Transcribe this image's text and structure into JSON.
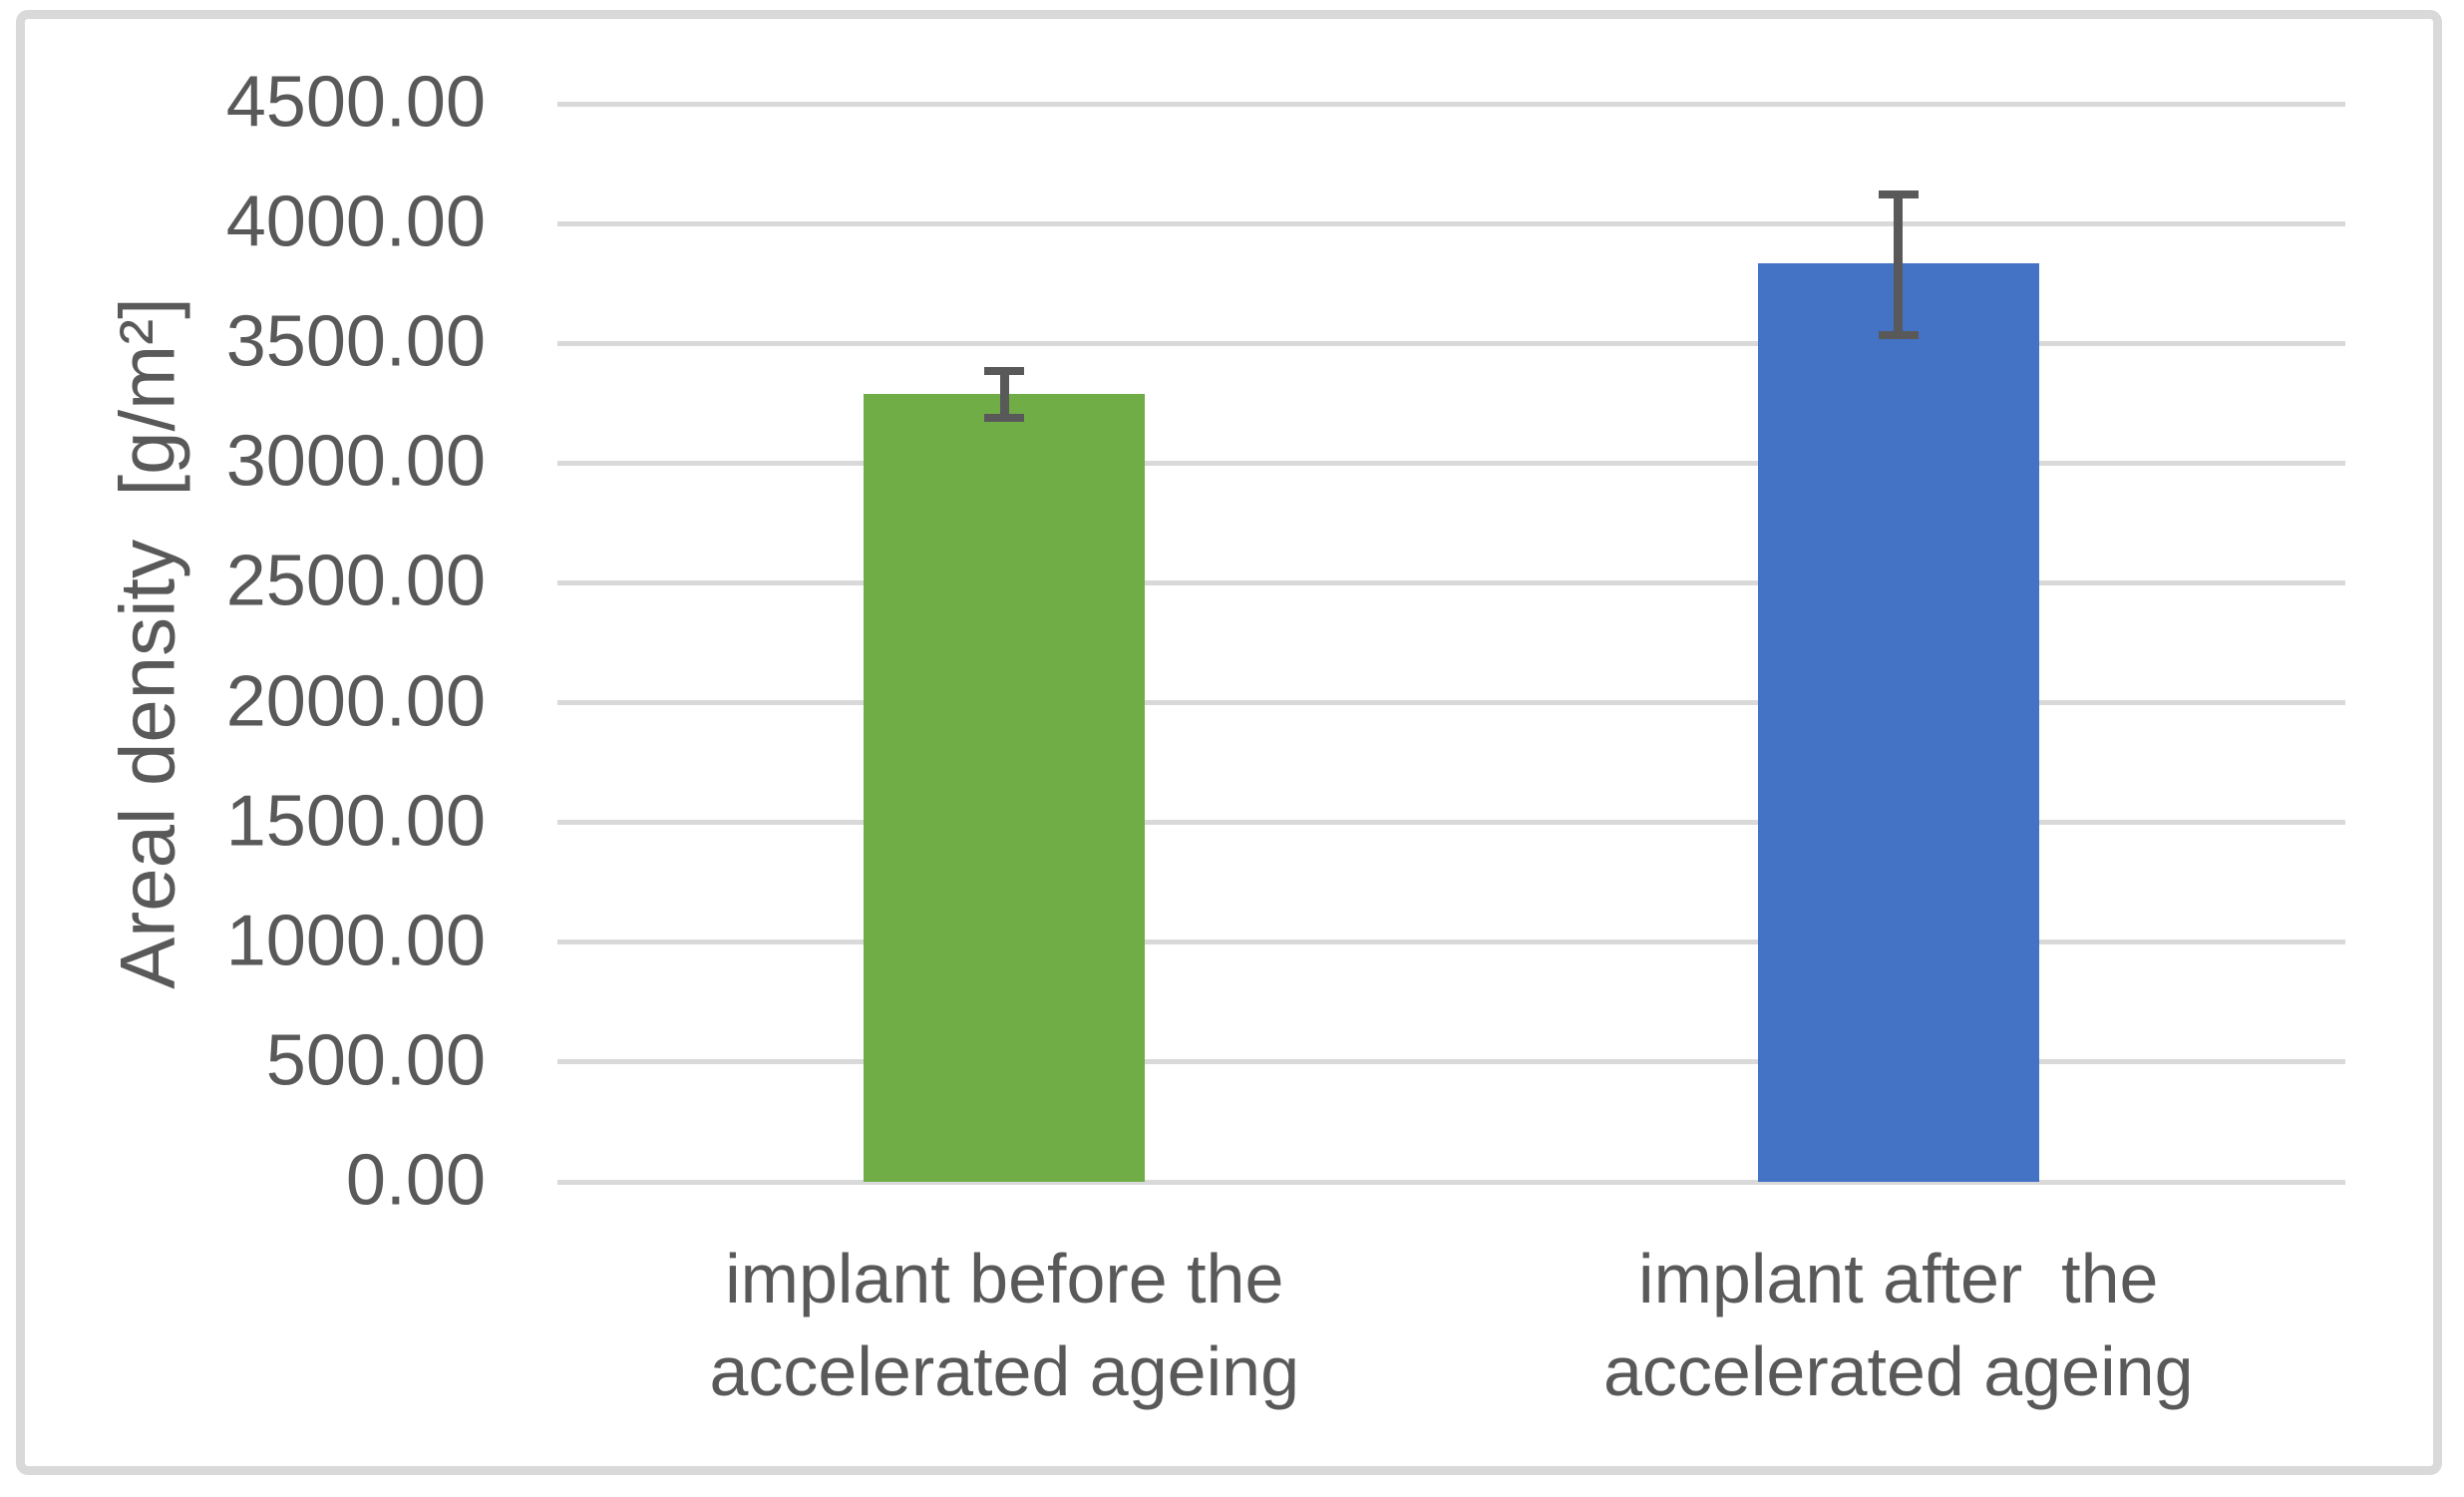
{
  "chart_data": {
    "type": "bar",
    "title": "",
    "xlabel": "",
    "ylabel": "Areal density  [g/m²]",
    "ylim": [
      0,
      4500
    ],
    "ytick_step": 500,
    "ytick_labels": [
      "4500.00",
      "4000.00",
      "3500.00",
      "3000.00",
      "2500.00",
      "2000.00",
      "1500.00",
      "1000.00",
      "500.00",
      "0.00"
    ],
    "categories": [
      "implant before the\naccelerated ageing",
      "implant after  the\naccelerated ageing"
    ],
    "series": [
      {
        "name": "Areal density",
        "values": [
          3288,
          3833
        ],
        "errors_plus": [
          95,
          290
        ],
        "errors_minus": [
          100,
          300
        ],
        "colors": [
          "#70AD47",
          "#4472C4"
        ]
      }
    ],
    "grid": "horizontal",
    "legend": "none",
    "gridline_color": "#D9D9D9",
    "text_color": "#595959",
    "error_bar_color": "#595959",
    "frame_color": "#D9D9D9"
  }
}
